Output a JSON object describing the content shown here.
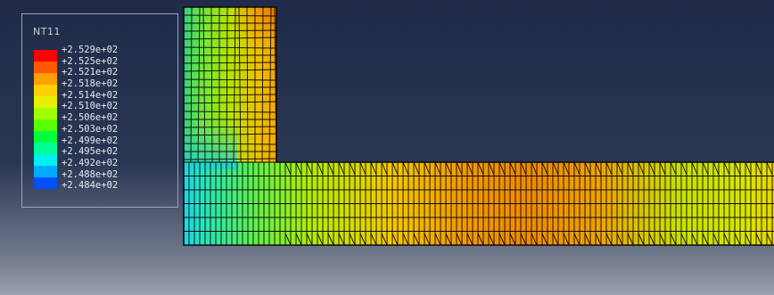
{
  "legend": {
    "title": "NT11",
    "labels": [
      "+2.529e+02",
      "+2.525e+02",
      "+2.521e+02",
      "+2.518e+02",
      "+2.514e+02",
      "+2.510e+02",
      "+2.506e+02",
      "+2.503e+02",
      "+2.499e+02",
      "+2.495e+02",
      "+2.492e+02",
      "+2.488e+02",
      "+2.484e+02"
    ],
    "colors": [
      "#ff0000",
      "#ff5a00",
      "#ffa000",
      "#ffd200",
      "#e6f000",
      "#a0ff00",
      "#5aff00",
      "#00ff3c",
      "#00ff96",
      "#00f0f0",
      "#00aaff",
      "#0050ff",
      "#0000ff"
    ]
  },
  "palette": {
    "background_top": "#1f2b48",
    "background_bottom": "#9a9fac",
    "mesh_line": "#0b0b0b"
  }
}
